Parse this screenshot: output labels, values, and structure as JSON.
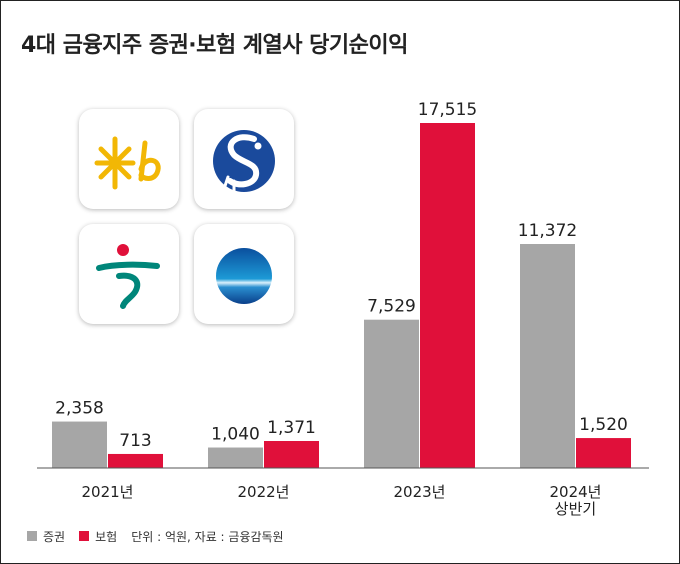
{
  "title": "4대 금융지주 증권·보험 계열사 당기순이익",
  "chart_data": {
    "type": "bar",
    "categories": [
      "2021년",
      "2022년",
      "2023년",
      "2024년 상반기"
    ],
    "category_lines": [
      [
        "2021년"
      ],
      [
        "2022년"
      ],
      [
        "2023년"
      ],
      [
        "2024년",
        "상반기"
      ]
    ],
    "series": [
      {
        "name": "증권",
        "values": [
          2358,
          1040,
          7529,
          11372
        ],
        "labels": [
          "2,358",
          "1,040",
          "7,529",
          "11,372"
        ],
        "color": "#a6a6a6"
      },
      {
        "name": "보험",
        "values": [
          713,
          1371,
          17515,
          1520
        ],
        "labels": [
          "713",
          "1,371",
          "17,515",
          "1,520"
        ],
        "color": "#e0103a"
      }
    ],
    "ylim": [
      0,
      17515
    ],
    "grid": false,
    "legend": "bottom-left",
    "note": "단위 : 억원, 자료 : 금융감독원"
  },
  "logos": [
    {
      "icon": "kb-logo-icon",
      "color": "#f2b705"
    },
    {
      "icon": "shinhan-logo-icon",
      "color": "#1a4a9c"
    },
    {
      "icon": "hana-logo-icon",
      "color": "#00867a"
    },
    {
      "icon": "woori-logo-icon",
      "color": "#0067ac"
    }
  ]
}
